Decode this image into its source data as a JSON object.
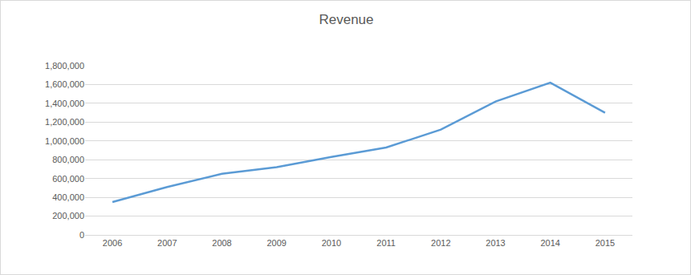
{
  "chart_data": {
    "type": "line",
    "title": "Revenue",
    "categories": [
      "2006",
      "2007",
      "2008",
      "2009",
      "2010",
      "2011",
      "2012",
      "2013",
      "2014",
      "2015"
    ],
    "values": [
      350000,
      510000,
      650000,
      720000,
      830000,
      930000,
      1120000,
      1420000,
      1620000,
      1300000
    ],
    "color": "#5b9bd5",
    "ylim": [
      0,
      1800000
    ],
    "yticks": [
      0,
      {
        "value": 200000,
        "label": "200,000"
      },
      {
        "value": 400000,
        "label": "400,000"
      },
      {
        "value": 600000,
        "label": "600,000"
      },
      {
        "value": 800000,
        "label": "800,000"
      },
      {
        "value": 1000000,
        "label": "1,000,000"
      },
      {
        "value": 1200000,
        "label": "1,200,000"
      },
      {
        "value": 1400000,
        "label": "1,400,000"
      },
      {
        "value": 1600000,
        "label": "1,600,000"
      },
      {
        "value": 1800000,
        "label": "1,800,000"
      }
    ],
    "grid": true
  }
}
